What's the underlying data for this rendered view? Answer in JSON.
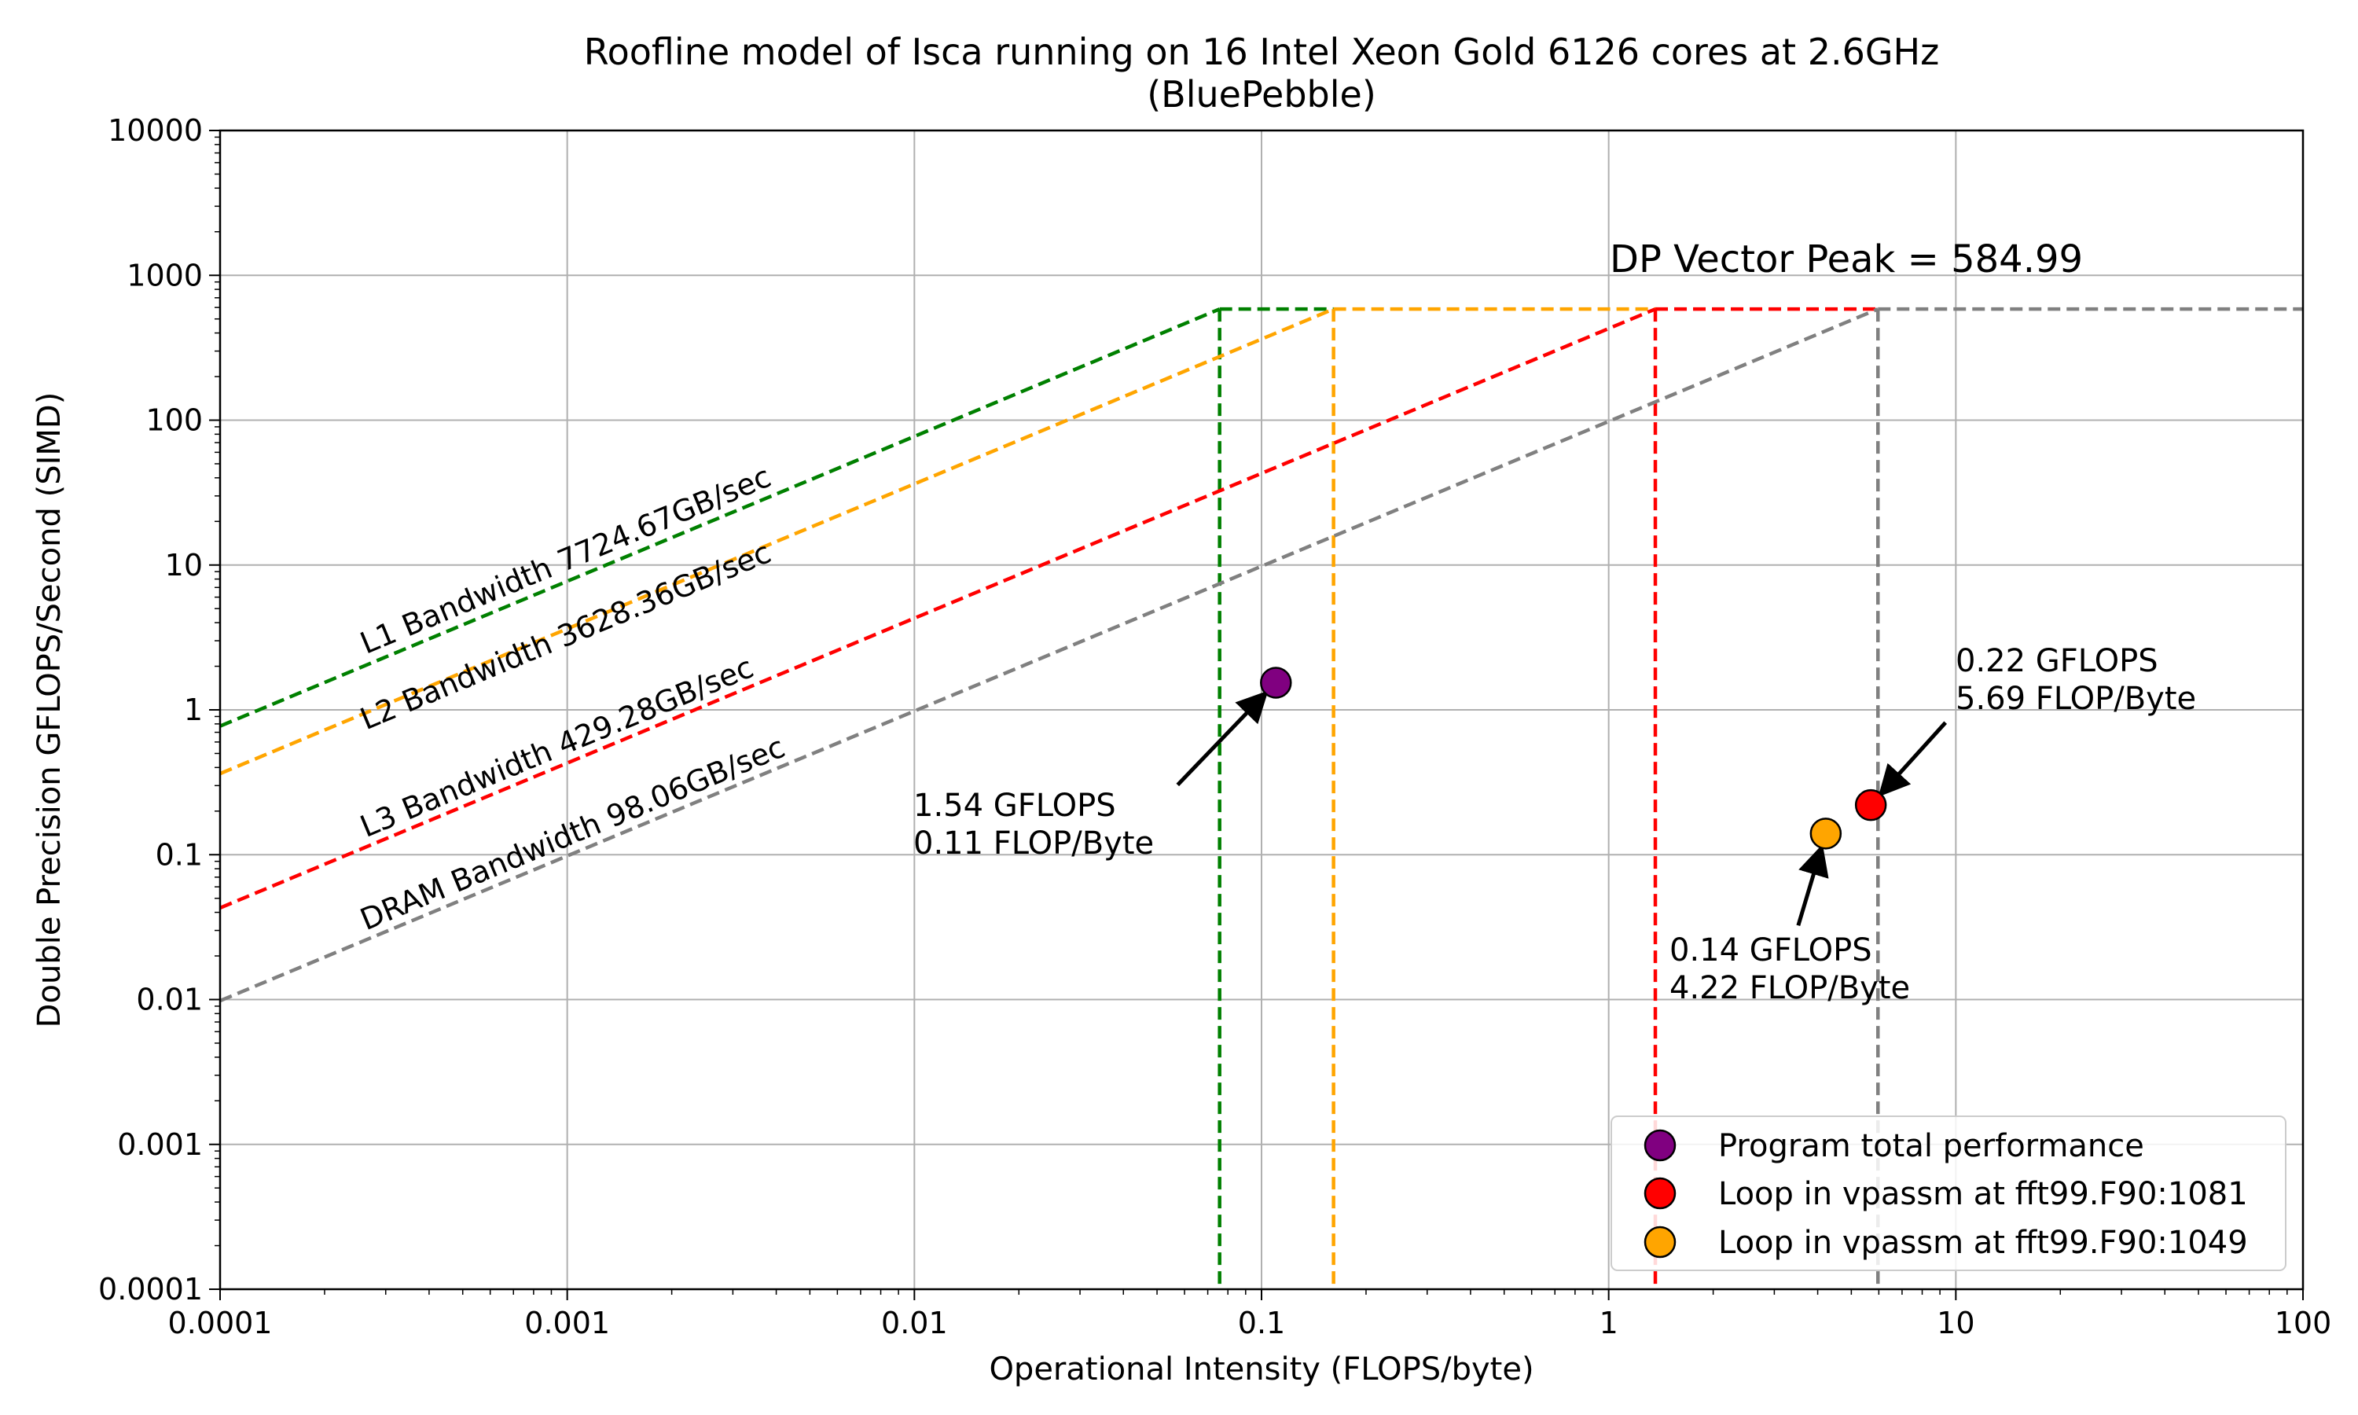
{
  "chart_data": {
    "type": "scatter",
    "title": "Roofline model of Isca running on 16 Intel Xeon Gold 6126 cores at 2.6GHz",
    "subtitle": "(BluePebble)",
    "xlabel": "Operational Intensity (FLOPS/byte)",
    "ylabel": "Double Precision GFLOPS/Second (SIMD)",
    "xscale": "log",
    "yscale": "log",
    "xlim": [
      0.0001,
      100
    ],
    "ylim": [
      0.0001,
      10000
    ],
    "xticks": [
      0.0001,
      0.001,
      0.01,
      0.1,
      1,
      10,
      100
    ],
    "xtick_labels": [
      "0.0001",
      "0.001",
      "0.01",
      "0.1",
      "1",
      "10",
      "100"
    ],
    "yticks": [
      0.0001,
      0.001,
      0.01,
      0.1,
      1,
      10,
      100,
      1000,
      10000
    ],
    "ytick_labels": [
      "0.0001",
      "0.001",
      "0.01",
      "0.1",
      "1",
      "10",
      "100",
      "1000",
      "10000"
    ],
    "grid": true,
    "legend_position": "lower-right",
    "peak": {
      "value": 584.99,
      "label": "DP Vector Peak = 584.99"
    },
    "roofs": [
      {
        "label": "L1 Bandwidth 7724.67GB/sec",
        "bandwidth": 7724.67,
        "color": "#008000"
      },
      {
        "label": "L2 Bandwidth 3628.36GB/sec",
        "bandwidth": 3628.36,
        "color": "#ffa500"
      },
      {
        "label": "L3 Bandwidth 429.28GB/sec",
        "bandwidth": 429.28,
        "color": "#ff0000"
      },
      {
        "label": "DRAM Bandwidth 98.06GB/sec",
        "bandwidth": 98.06,
        "color": "#808080"
      }
    ],
    "series": [
      {
        "name": "Program total performance",
        "x": 0.11,
        "y": 1.54,
        "color": "#800080",
        "annotation": [
          "1.54 GFLOPS",
          "0.11 FLOP/Byte"
        ]
      },
      {
        "name": "Loop in vpassm at fft99.F90:1081",
        "x": 5.69,
        "y": 0.22,
        "color": "#ff0000",
        "annotation": [
          "0.22 GFLOPS",
          "5.69 FLOP/Byte"
        ]
      },
      {
        "name": "Loop in vpassm at fft99.F90:1049",
        "x": 4.22,
        "y": 0.14,
        "color": "#ffa500",
        "annotation": [
          "0.14 GFLOPS",
          "4.22 FLOP/Byte"
        ]
      }
    ]
  }
}
